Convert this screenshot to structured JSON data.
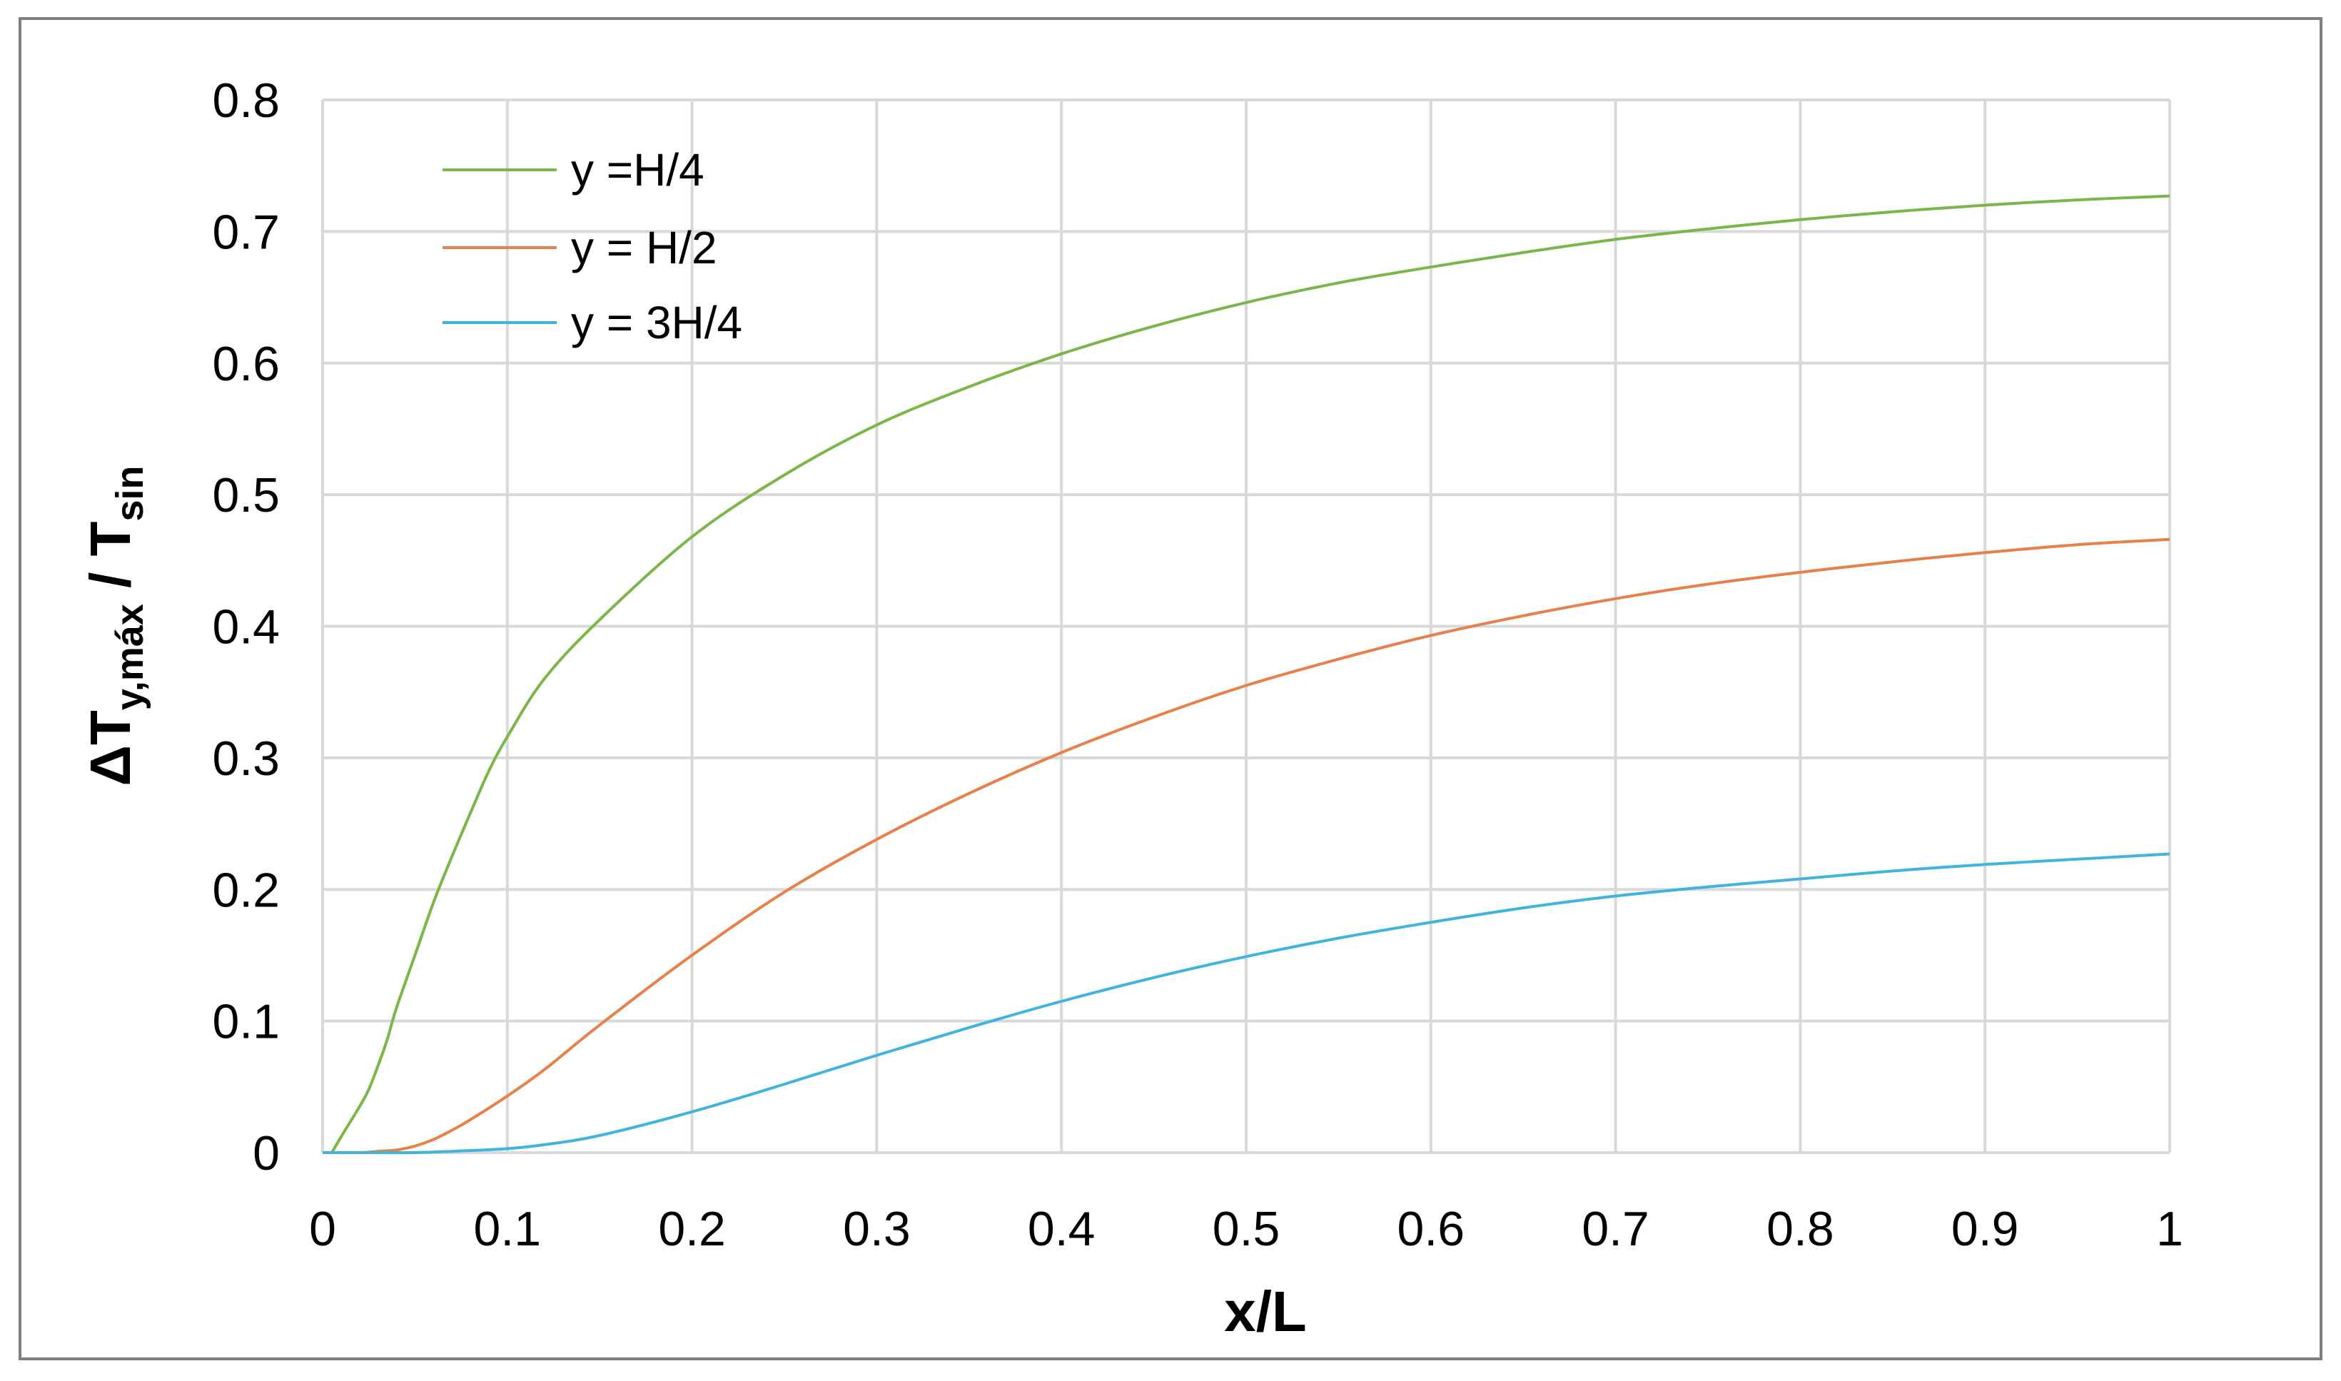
{
  "chart_data": {
    "type": "line",
    "xlabel": "x/L",
    "ylabel": {
      "main": "ΔT",
      "sub": "y,máx",
      "sep": " / T",
      "sub2": "sin"
    },
    "xlim": [
      0,
      1
    ],
    "ylim": [
      0,
      0.8
    ],
    "x_ticks": [
      "0",
      "0.1",
      "0.2",
      "0.3",
      "0.4",
      "0.5",
      "0.6",
      "0.7",
      "0.8",
      "0.9",
      "1"
    ],
    "y_ticks": [
      "0",
      "0.1",
      "0.2",
      "0.3",
      "0.4",
      "0.5",
      "0.6",
      "0.7",
      "0.8"
    ],
    "grid": true,
    "legend": "top-left",
    "series": [
      {
        "name": "y =H/4",
        "color": "#7ab648",
        "x": [
          0.005,
          0.01,
          0.02,
          0.025,
          0.03,
          0.035,
          0.04,
          0.05,
          0.06,
          0.07,
          0.08,
          0.09,
          0.1,
          0.12,
          0.15,
          0.2,
          0.25,
          0.3,
          0.35,
          0.4,
          0.45,
          0.5,
          0.55,
          0.6,
          0.65,
          0.7,
          0.75,
          0.8,
          0.85,
          0.9,
          0.95,
          1.0
        ],
        "y": [
          0.0,
          0.012,
          0.035,
          0.048,
          0.066,
          0.086,
          0.11,
          0.15,
          0.19,
          0.225,
          0.258,
          0.29,
          0.316,
          0.36,
          0.405,
          0.468,
          0.515,
          0.553,
          0.582,
          0.607,
          0.628,
          0.646,
          0.661,
          0.673,
          0.684,
          0.694,
          0.702,
          0.709,
          0.715,
          0.72,
          0.724,
          0.727
        ]
      },
      {
        "name": "y = H/2",
        "color": "#e8804a",
        "x": [
          0.0,
          0.02,
          0.03,
          0.04,
          0.05,
          0.06,
          0.07,
          0.08,
          0.1,
          0.12,
          0.15,
          0.2,
          0.25,
          0.3,
          0.35,
          0.4,
          0.45,
          0.5,
          0.55,
          0.6,
          0.65,
          0.7,
          0.75,
          0.8,
          0.85,
          0.9,
          0.95,
          1.0
        ],
        "y": [
          0.0,
          0.0,
          0.001,
          0.002,
          0.005,
          0.01,
          0.017,
          0.025,
          0.043,
          0.063,
          0.097,
          0.15,
          0.198,
          0.238,
          0.273,
          0.304,
          0.331,
          0.355,
          0.375,
          0.393,
          0.408,
          0.421,
          0.432,
          0.441,
          0.449,
          0.456,
          0.462,
          0.466
        ]
      },
      {
        "name": "y = 3H/4",
        "color": "#40b4dc",
        "x": [
          0.0,
          0.03,
          0.05,
          0.07,
          0.1,
          0.12,
          0.15,
          0.2,
          0.25,
          0.3,
          0.35,
          0.4,
          0.45,
          0.5,
          0.55,
          0.6,
          0.65,
          0.7,
          0.75,
          0.8,
          0.85,
          0.9,
          0.95,
          1.0
        ],
        "y": [
          0.0,
          0.0,
          0.0,
          0.001,
          0.003,
          0.006,
          0.013,
          0.031,
          0.052,
          0.074,
          0.095,
          0.115,
          0.133,
          0.149,
          0.163,
          0.175,
          0.186,
          0.195,
          0.202,
          0.208,
          0.214,
          0.219,
          0.223,
          0.227
        ]
      }
    ],
    "colors": {
      "grid": "#d9d9d9",
      "frame": "#7f7f7f",
      "background": "#ffffff"
    }
  }
}
